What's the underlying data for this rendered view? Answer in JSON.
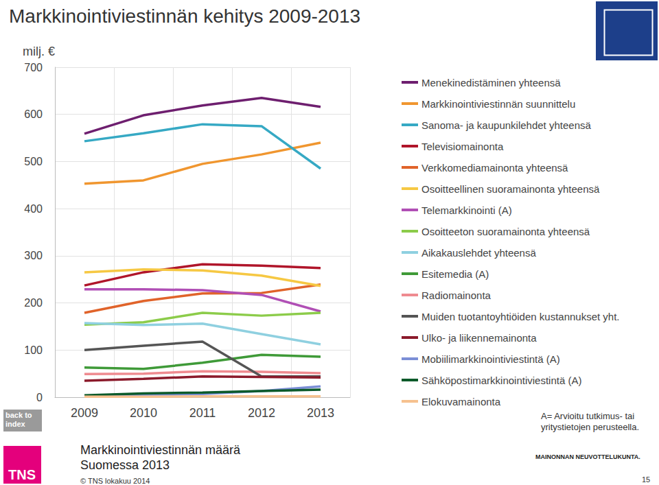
{
  "chart_data": {
    "type": "line",
    "title": "Markkinointiviestinnän kehitys 2009-2013",
    "y_label": "milj. €",
    "categories": [
      "2009",
      "2010",
      "2011",
      "2012",
      "2013"
    ],
    "ylim": [
      0,
      700
    ],
    "yticks": [
      0,
      100,
      200,
      300,
      400,
      500,
      600,
      700
    ],
    "grid": true,
    "legend": "right",
    "annotations": [
      "A= Arvioitu tutkimus- tai yritystietojen perusteella."
    ],
    "series": [
      {
        "name": "Menekinedistäminen yhteensä",
        "color": "#6e1f6f",
        "values": [
          559,
          598,
          619,
          635,
          616
        ]
      },
      {
        "name": "Markkinointiviestinnän suunnittelu",
        "color": "#f0962f",
        "values": [
          453,
          460,
          495,
          515,
          540
        ]
      },
      {
        "name": "Sanoma- ja kaupunkilehdet yhteensä",
        "color": "#36a9c4",
        "values": [
          543,
          560,
          579,
          575,
          485
        ]
      },
      {
        "name": "Televisiomainonta",
        "color": "#b0152a",
        "values": [
          237,
          265,
          282,
          279,
          274
        ]
      },
      {
        "name": "Verkkomediamainonta yhteensä",
        "color": "#e0632a",
        "values": [
          179,
          204,
          220,
          221,
          239
        ]
      },
      {
        "name": "Osoitteellinen suoramainonta yhteensä",
        "color": "#f6c843",
        "values": [
          265,
          271,
          269,
          258,
          236
        ]
      },
      {
        "name": "Telemarkkinointi (A)",
        "color": "#b04fb5",
        "values": [
          229,
          229,
          227,
          217,
          182
        ]
      },
      {
        "name": "Osoitteeton suoramainonta yhteensä",
        "color": "#8ccc4a",
        "values": [
          154,
          159,
          179,
          173,
          179
        ]
      },
      {
        "name": "Aikakauslehdet yhteensä",
        "color": "#8fd0e0",
        "values": [
          157,
          153,
          156,
          134,
          112
        ]
      },
      {
        "name": "Esitemedia (A)",
        "color": "#3f9a38",
        "values": [
          63,
          60,
          73,
          90,
          86
        ]
      },
      {
        "name": "Radiomainonta",
        "color": "#ef8b90",
        "values": [
          49,
          50,
          55,
          54,
          51
        ]
      },
      {
        "name": "Muiden tuotantoyhtiöiden kustannukset yht.",
        "color": "#555555",
        "values": [
          100,
          109,
          118,
          44,
          44
        ]
      },
      {
        "name": "Ulko- ja liikennemainonta",
        "color": "#8b1a2b",
        "values": [
          35,
          39,
          44,
          43,
          42
        ]
      },
      {
        "name": "Mobiilimarkkinointiviestintä (A)",
        "color": "#7b8ed6",
        "values": [
          1,
          4,
          7,
          13,
          23
        ]
      },
      {
        "name": "Sähköpostimarkkinointiviestintä (A)",
        "color": "#0c5a2a",
        "values": [
          4,
          8,
          10,
          13,
          16
        ]
      },
      {
        "name": "Elokuvamainonta",
        "color": "#f6c18f",
        "values": [
          1,
          1,
          2,
          2,
          2
        ]
      }
    ]
  },
  "page": {
    "footer_lines": [
      "Markkinointiviestinnän määrä",
      "Suomessa 2013"
    ],
    "copyright": "© TNS lokakuu 2014",
    "page_number": "15",
    "logos": [
      "TNS",
      "MAINONNAN NEUVOTTELUKUNTA."
    ],
    "back_link": [
      "back to",
      "index"
    ]
  }
}
